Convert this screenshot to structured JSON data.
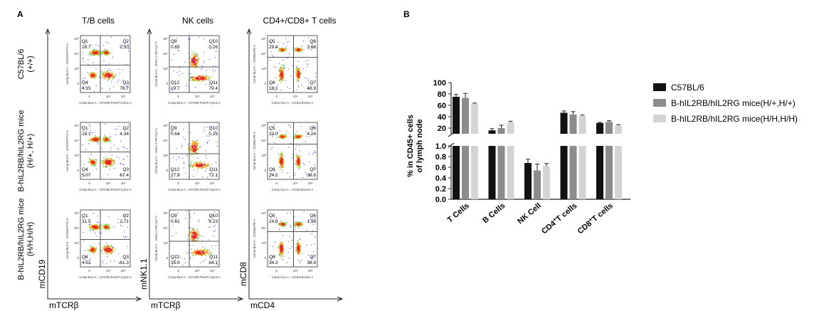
{
  "panel_a": {
    "label": "A",
    "column_titles": [
      "T/B cells",
      "NK cells",
      "CD4+/CD8+ T cells"
    ],
    "row_labels": [
      [
        "C57BL/6",
        "(+/+)"
      ],
      [
        "B-hIL2RB/hIL2RG mice",
        "(H/+, H/+)"
      ],
      [
        "B-hIL2RB/hIL2RG mice",
        "(H/H,H/H)"
      ]
    ],
    "column_axes": [
      {
        "y": "mCD19",
        "x": "mTCRβ",
        "plot_y": "Comp-BL2-A :: mCD19-FITC-A",
        "plot_x": "Comp-BL3-A :: mTCRb-PerCP-Cy5.5-A"
      },
      {
        "y": "mNK1.1",
        "x": "mTCRβ",
        "plot_y": "Comp-BL2-A :: mNK1.1-PE-Cy7-A",
        "plot_x": "Comp-BL3-A :: mTCRb-PerCP-Cy5.5-A"
      },
      {
        "y": "mCD8",
        "x": "mCD4",
        "plot_y": "Comp-BL2-A :: mCD8a-PE-A",
        "plot_x": "Comp-VL1-A :: mCD4-BV421-A"
      }
    ],
    "quadrants": [
      [
        [
          {
            "q": "Q1",
            "v": "16.7"
          },
          {
            "q": "Q2",
            "v": "2.50"
          },
          {
            "q": "Q4",
            "v": "4.15"
          },
          {
            "q": "Q3",
            "v": "76.7"
          }
        ],
        [
          {
            "q": "Q9",
            "v": "0.65"
          },
          {
            "q": "Q10",
            "v": "0.26"
          },
          {
            "q": "Q12",
            "v": "19.7"
          },
          {
            "q": "Q11",
            "v": "79.4"
          }
        ],
        [
          {
            "q": "Q5",
            "v": "29.4"
          },
          {
            "q": "Q6",
            "v": "3.66"
          },
          {
            "q": "Q8",
            "v": "18.1"
          },
          {
            "q": "Q7",
            "v": "48.9"
          }
        ]
      ],
      [
        [
          {
            "q": "Q1",
            "v": "23.1"
          },
          {
            "q": "Q2",
            "v": "4.34"
          },
          {
            "q": "Q4",
            "v": "5.07"
          },
          {
            "q": "Q3",
            "v": "67.4"
          }
        ],
        [
          {
            "q": "Q9",
            "v": "0.64"
          },
          {
            "q": "Q10",
            "v": "0.25"
          },
          {
            "q": "Q12",
            "v": "27.8"
          },
          {
            "q": "Q11",
            "v": "72.1"
          }
        ],
        [
          {
            "q": "Q5",
            "v": "32.0"
          },
          {
            "q": "Q6",
            "v": "4.24"
          },
          {
            "q": "Q8",
            "v": "24.2"
          },
          {
            "q": "Q7",
            "v": "39.6"
          }
        ]
      ],
      [
        [
          {
            "q": "Q1",
            "v": "31.5"
          },
          {
            "q": "Q2",
            "v": "2.71"
          },
          {
            "q": "Q4",
            "v": "4.51"
          },
          {
            "q": "Q3",
            "v": "61.3"
          }
        ],
        [
          {
            "q": "Q9",
            "v": "0.61"
          },
          {
            "q": "Q10",
            "v": "0.23"
          },
          {
            "q": "Q12",
            "v": "35.0"
          },
          {
            "q": "Q11",
            "v": "64.1"
          }
        ],
        [
          {
            "q": "Q5",
            "v": "24.8"
          },
          {
            "q": "Q6",
            "v": "1.99"
          },
          {
            "q": "Q8",
            "v": "34.3"
          },
          {
            "q": "Q7",
            "v": "38.9"
          }
        ]
      ]
    ]
  },
  "chart_data": {
    "type": "bar",
    "panel_label": "B",
    "ylabel": "% in CD45+ cells of lymph node",
    "ylabel_lines": [
      "% in CD45+ cells",
      "of lymph node"
    ],
    "y_axis": "broken",
    "lower_segment": {
      "ylim": [
        0,
        1.0
      ],
      "ticks": [
        "0.0",
        "0.2",
        "0.4",
        "0.6",
        "0.8",
        "1.0"
      ]
    },
    "upper_segment": {
      "ylim": [
        10,
        100
      ],
      "ticks": [
        "20",
        "40",
        "60",
        "80",
        "100"
      ]
    },
    "categories": [
      "T Cells",
      "B Cells",
      "NK Cell",
      "CD4+T cells",
      "CD8+T cells"
    ],
    "category_labels": [
      {
        "pre": "T Cells",
        "sup": "",
        "post": ""
      },
      {
        "pre": "B Cells",
        "sup": "",
        "post": ""
      },
      {
        "pre": "NK Cell",
        "sup": "",
        "post": ""
      },
      {
        "pre": "CD4",
        "sup": "+",
        "post": "T cells"
      },
      {
        "pre": "CD8",
        "sup": "+",
        "post": "T cells"
      }
    ],
    "series": [
      {
        "name": "C57BL/6",
        "color": "#111111",
        "values": [
          75,
          16,
          0.68,
          47,
          29
        ],
        "errors": [
          4,
          3,
          0.07,
          3,
          1
        ]
      },
      {
        "name": "B-hIL2RB/hIL2RG mice(H/+,H/+)",
        "color": "#8c8c8c",
        "values": [
          73,
          20,
          0.54,
          44,
          31
        ],
        "errors": [
          8,
          5,
          0.12,
          5,
          2
        ]
      },
      {
        "name": "B-hIL2RB/hIL2RG mice(H/H,H/H)",
        "color": "#d4d4d4",
        "values": [
          63,
          30,
          0.62,
          41,
          24
        ],
        "errors": [
          1,
          2,
          0.05,
          2,
          2
        ]
      }
    ],
    "legend": "right",
    "grid": false
  }
}
